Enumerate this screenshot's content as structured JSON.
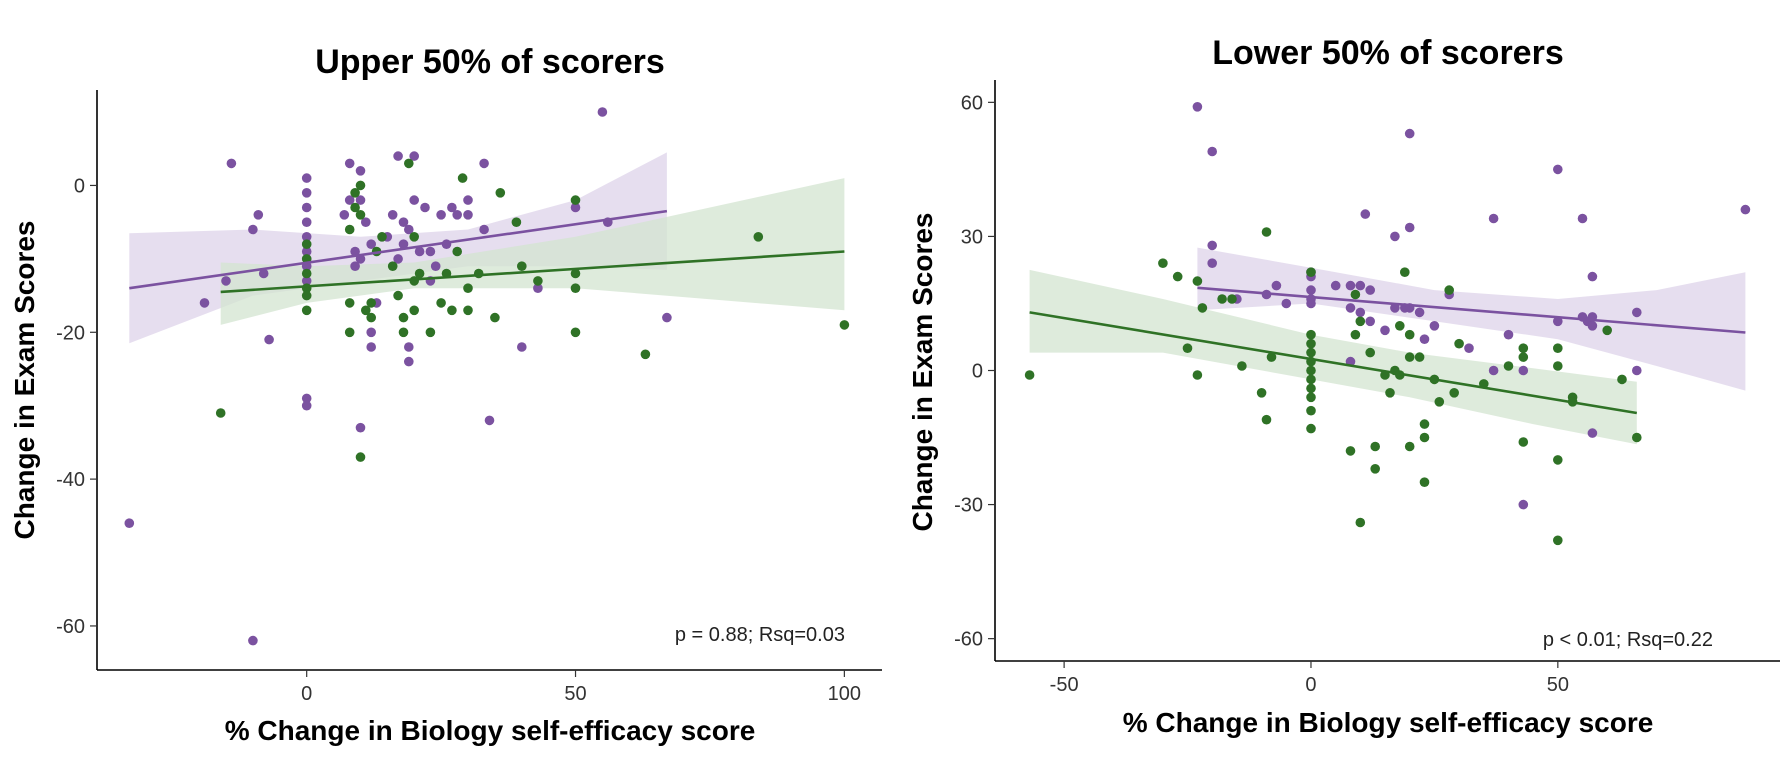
{
  "colors": {
    "purple": "#7b52a0",
    "green": "#2f7226",
    "purple_band": "#ddd3ea",
    "green_band": "#d3e4d0"
  },
  "chart_data": [
    {
      "type": "scatter",
      "title": "Upper 50% of scorers",
      "xlabel": "% Change in Biology self-efficacy score",
      "ylabel": "Change in Exam Scores",
      "xlim": [
        -39,
        107
      ],
      "ylim": [
        -66,
        13
      ],
      "xticks": [
        0,
        50,
        100
      ],
      "yticks": [
        0,
        -20,
        -40,
        -60
      ],
      "annotation": "p = 0.88; Rsq=0.03",
      "series": [
        {
          "color_key": "purple",
          "points": [
            [
              -33,
              -46
            ],
            [
              -14,
              3
            ],
            [
              -19,
              -16
            ],
            [
              -15,
              -13
            ],
            [
              -10,
              -6
            ],
            [
              -9,
              -4
            ],
            [
              -8,
              -12
            ],
            [
              -7,
              -21
            ],
            [
              -10,
              -62
            ],
            [
              0,
              1
            ],
            [
              0,
              -1
            ],
            [
              0,
              -3
            ],
            [
              0,
              -5
            ],
            [
              0,
              -7
            ],
            [
              0,
              -9
            ],
            [
              0,
              -10
            ],
            [
              0,
              -11
            ],
            [
              0,
              -13
            ],
            [
              0,
              -29
            ],
            [
              0,
              -30
            ],
            [
              7,
              -4
            ],
            [
              8,
              3
            ],
            [
              8,
              -2
            ],
            [
              9,
              -9
            ],
            [
              9,
              -11
            ],
            [
              10,
              -2
            ],
            [
              10,
              2
            ],
            [
              10,
              -10
            ],
            [
              10,
              -33
            ],
            [
              11,
              -5
            ],
            [
              12,
              -8
            ],
            [
              12,
              -20
            ],
            [
              12,
              -22
            ],
            [
              13,
              -16
            ],
            [
              15,
              -7
            ],
            [
              16,
              -4
            ],
            [
              17,
              -10
            ],
            [
              17,
              4
            ],
            [
              18,
              -5
            ],
            [
              18,
              -8
            ],
            [
              19,
              -6
            ],
            [
              19,
              -22
            ],
            [
              19,
              -24
            ],
            [
              20,
              4
            ],
            [
              20,
              -2
            ],
            [
              21,
              -9
            ],
            [
              22,
              -3
            ],
            [
              23,
              -9
            ],
            [
              23,
              -13
            ],
            [
              24,
              -11
            ],
            [
              25,
              -4
            ],
            [
              26,
              -8
            ],
            [
              27,
              -3
            ],
            [
              28,
              -4
            ],
            [
              30,
              -2
            ],
            [
              30,
              -4
            ],
            [
              33,
              3
            ],
            [
              33,
              -6
            ],
            [
              34,
              -32
            ],
            [
              40,
              -22
            ],
            [
              43,
              -14
            ],
            [
              50,
              -3
            ],
            [
              55,
              10
            ],
            [
              56,
              -5
            ],
            [
              67,
              -18
            ]
          ],
          "fit": {
            "x": [
              -33,
              67
            ],
            "y": [
              -14,
              -3.5
            ]
          },
          "band": {
            "x": [
              -33,
              -10,
              10,
              30,
              50,
              67
            ],
            "upper": [
              -6.5,
              -6,
              -7,
              -6,
              -2,
              4.5
            ],
            "lower": [
              -21.5,
              -15,
              -13,
              -11,
              -11,
              -11.5
            ]
          }
        },
        {
          "color_key": "green",
          "points": [
            [
              -16,
              -31
            ],
            [
              0,
              -8
            ],
            [
              0,
              -10
            ],
            [
              0,
              -12
            ],
            [
              0,
              -14
            ],
            [
              0,
              -15
            ],
            [
              0,
              -17
            ],
            [
              8,
              -16
            ],
            [
              8,
              -20
            ],
            [
              8,
              -6
            ],
            [
              9,
              -1
            ],
            [
              9,
              -3
            ],
            [
              10,
              0
            ],
            [
              10,
              -4
            ],
            [
              10,
              -37
            ],
            [
              11,
              -17
            ],
            [
              12,
              -16
            ],
            [
              12,
              -18
            ],
            [
              13,
              -9
            ],
            [
              14,
              -7
            ],
            [
              16,
              -11
            ],
            [
              17,
              -15
            ],
            [
              18,
              -18
            ],
            [
              18,
              -20
            ],
            [
              19,
              3
            ],
            [
              20,
              -13
            ],
            [
              20,
              -7
            ],
            [
              20,
              -17
            ],
            [
              21,
              -12
            ],
            [
              23,
              -20
            ],
            [
              25,
              -16
            ],
            [
              26,
              -12
            ],
            [
              27,
              -17
            ],
            [
              28,
              -9
            ],
            [
              29,
              1
            ],
            [
              30,
              -14
            ],
            [
              30,
              -17
            ],
            [
              32,
              -12
            ],
            [
              35,
              -18
            ],
            [
              36,
              -1
            ],
            [
              39,
              -5
            ],
            [
              40,
              -11
            ],
            [
              43,
              -13
            ],
            [
              50,
              -12
            ],
            [
              50,
              -14
            ],
            [
              50,
              -2
            ],
            [
              50,
              -20
            ],
            [
              63,
              -23
            ],
            [
              84,
              -7
            ],
            [
              100,
              -19
            ]
          ],
          "fit": {
            "x": [
              -16,
              100
            ],
            "y": [
              -14.5,
              -9
            ]
          },
          "band": {
            "x": [
              -16,
              0,
              20,
              50,
              75,
              100
            ],
            "upper": [
              -10.5,
              -11,
              -10.5,
              -7,
              -3,
              1
            ],
            "lower": [
              -19,
              -16,
              -14,
              -14,
              -15.5,
              -17
            ]
          }
        }
      ]
    },
    {
      "type": "scatter",
      "title": "Lower 50% of scorers",
      "xlabel": "% Change in Biology self-efficacy score",
      "ylabel": "Change in Exam Scores",
      "xlim": [
        -64,
        95
      ],
      "ylim": [
        -65,
        65
      ],
      "xticks": [
        -50,
        0,
        50
      ],
      "yticks": [
        60,
        30,
        0,
        -30,
        -60
      ],
      "annotation": "p < 0.01; Rsq=0.22",
      "series": [
        {
          "color_key": "purple",
          "points": [
            [
              -23,
              59
            ],
            [
              -20,
              49
            ],
            [
              -20,
              28
            ],
            [
              -20,
              24
            ],
            [
              -15,
              16
            ],
            [
              -9,
              17
            ],
            [
              -7,
              19
            ],
            [
              -5,
              15
            ],
            [
              0,
              22
            ],
            [
              0,
              21
            ],
            [
              0,
              18
            ],
            [
              0,
              16
            ],
            [
              0,
              15
            ],
            [
              5,
              19
            ],
            [
              8,
              14
            ],
            [
              8,
              19
            ],
            [
              8,
              2
            ],
            [
              10,
              19
            ],
            [
              10,
              13
            ],
            [
              11,
              35
            ],
            [
              12,
              18
            ],
            [
              12,
              11
            ],
            [
              15,
              9
            ],
            [
              17,
              14
            ],
            [
              17,
              30
            ],
            [
              19,
              14
            ],
            [
              20,
              14
            ],
            [
              20,
              32
            ],
            [
              20,
              53
            ],
            [
              22,
              13
            ],
            [
              23,
              7
            ],
            [
              25,
              10
            ],
            [
              28,
              17
            ],
            [
              32,
              5
            ],
            [
              37,
              34
            ],
            [
              37,
              0
            ],
            [
              40,
              8
            ],
            [
              43,
              0
            ],
            [
              43,
              -30
            ],
            [
              50,
              45
            ],
            [
              50,
              11
            ],
            [
              55,
              12
            ],
            [
              55,
              34
            ],
            [
              56,
              11
            ],
            [
              57,
              10
            ],
            [
              57,
              12
            ],
            [
              57,
              21
            ],
            [
              57,
              -14
            ],
            [
              66,
              13
            ],
            [
              66,
              0
            ],
            [
              88,
              36
            ]
          ],
          "fit": {
            "x": [
              -23,
              88
            ],
            "y": [
              18.5,
              8.5
            ]
          },
          "band": {
            "x": [
              -23,
              0,
              25,
              50,
              70,
              88
            ],
            "upper": [
              27.5,
              23,
              18,
              16,
              18,
              22
            ],
            "lower": [
              13.5,
              15,
              11,
              7,
              1,
              -4.5
            ]
          }
        },
        {
          "color_key": "green",
          "points": [
            [
              -57,
              -1
            ],
            [
              -30,
              24
            ],
            [
              -27,
              21
            ],
            [
              -25,
              5
            ],
            [
              -23,
              20
            ],
            [
              -23,
              -1
            ],
            [
              -22,
              14
            ],
            [
              -18,
              16
            ],
            [
              -16,
              16
            ],
            [
              -14,
              1
            ],
            [
              -10,
              -5
            ],
            [
              -9,
              31
            ],
            [
              -9,
              -11
            ],
            [
              -8,
              3
            ],
            [
              0,
              22
            ],
            [
              0,
              8
            ],
            [
              0,
              6
            ],
            [
              0,
              4
            ],
            [
              0,
              2
            ],
            [
              0,
              0
            ],
            [
              0,
              -2
            ],
            [
              0,
              -4
            ],
            [
              0,
              -6
            ],
            [
              0,
              -9
            ],
            [
              0,
              -13
            ],
            [
              8,
              -18
            ],
            [
              9,
              17
            ],
            [
              9,
              8
            ],
            [
              10,
              11
            ],
            [
              10,
              -34
            ],
            [
              12,
              4
            ],
            [
              13,
              -17
            ],
            [
              13,
              -22
            ],
            [
              15,
              -1
            ],
            [
              16,
              -5
            ],
            [
              17,
              0
            ],
            [
              18,
              10
            ],
            [
              18,
              -1
            ],
            [
              19,
              22
            ],
            [
              20,
              8
            ],
            [
              20,
              3
            ],
            [
              20,
              -17
            ],
            [
              22,
              3
            ],
            [
              23,
              -12
            ],
            [
              23,
              -15
            ],
            [
              23,
              -25
            ],
            [
              25,
              -2
            ],
            [
              26,
              -7
            ],
            [
              28,
              18
            ],
            [
              29,
              -5
            ],
            [
              30,
              6
            ],
            [
              35,
              -3
            ],
            [
              40,
              1
            ],
            [
              43,
              -16
            ],
            [
              43,
              3
            ],
            [
              43,
              5
            ],
            [
              50,
              -20
            ],
            [
              50,
              -38
            ],
            [
              50,
              5
            ],
            [
              50,
              1
            ],
            [
              53,
              -6
            ],
            [
              53,
              -7
            ],
            [
              60,
              9
            ],
            [
              63,
              -2
            ],
            [
              66,
              -15
            ]
          ],
          "fit": {
            "x": [
              -57,
              66
            ],
            "y": [
              13,
              -9.5
            ]
          },
          "band": {
            "x": [
              -57,
              -30,
              0,
              20,
              45,
              66
            ],
            "upper": [
              22.5,
              16,
              8,
              4,
              0.5,
              -2.5
            ],
            "lower": [
              4,
              4,
              -2,
              -6,
              -12,
              -16.5
            ]
          }
        }
      ]
    }
  ]
}
